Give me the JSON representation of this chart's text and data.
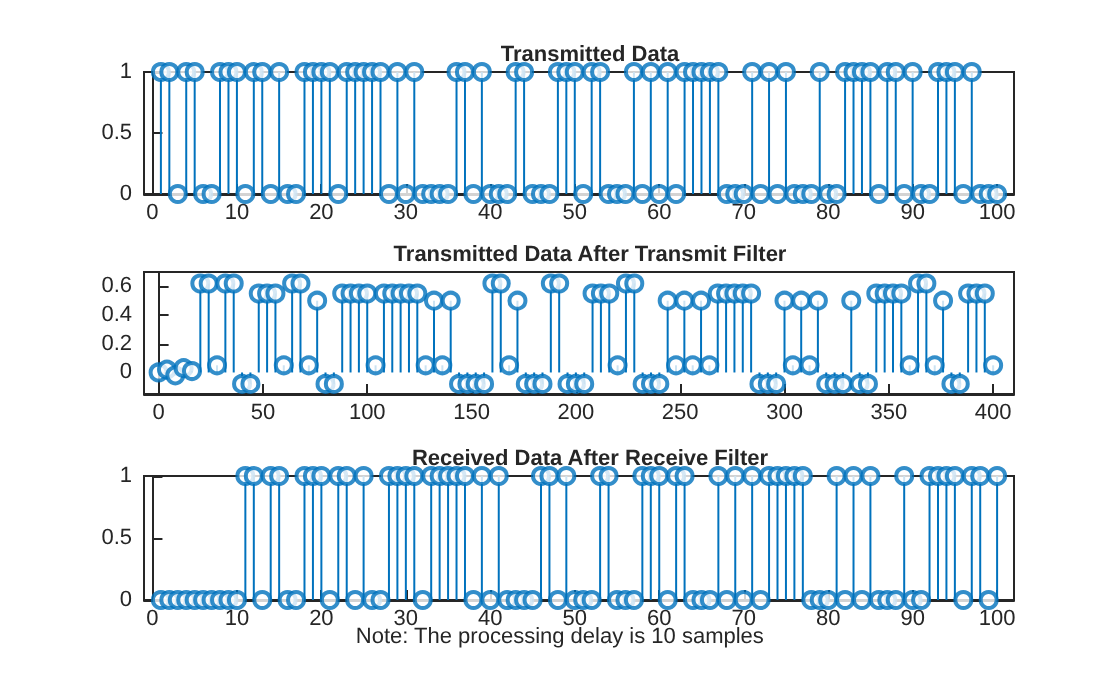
{
  "chart_data": [
    {
      "type": "lollipop",
      "title": "Transmitted Data",
      "color": "#0072bd",
      "marker": "circle",
      "x": [
        1,
        2,
        3,
        4,
        5,
        6,
        7,
        8,
        9,
        10,
        11,
        12,
        13,
        14,
        15,
        16,
        17,
        18,
        19,
        20,
        21,
        22,
        23,
        24,
        25,
        26,
        27,
        28,
        29,
        30,
        31,
        32,
        33,
        34,
        35,
        36,
        37,
        38,
        39,
        40,
        41,
        42,
        43,
        44,
        45,
        46,
        47,
        48,
        49,
        50,
        51,
        52,
        53,
        54,
        55,
        56,
        57,
        58,
        59,
        60,
        61,
        62,
        63,
        64,
        65,
        66,
        67,
        68,
        69,
        70,
        71,
        72,
        73,
        74,
        75,
        76,
        77,
        78,
        79,
        80,
        81,
        82,
        83,
        84,
        85,
        86,
        87,
        88,
        89,
        90,
        91,
        92,
        93,
        94,
        95,
        96,
        97,
        98,
        99,
        100
      ],
      "values": [
        1,
        1,
        0,
        1,
        1,
        0,
        0,
        1,
        1,
        1,
        0,
        1,
        1,
        0,
        1,
        0,
        0,
        1,
        1,
        1,
        1,
        0,
        1,
        1,
        1,
        1,
        1,
        0,
        1,
        0,
        1,
        0,
        0,
        0,
        0,
        1,
        1,
        0,
        1,
        0,
        0,
        0,
        1,
        1,
        0,
        0,
        0,
        1,
        1,
        1,
        0,
        1,
        1,
        0,
        0,
        0,
        1,
        0,
        1,
        0,
        1,
        0,
        1,
        1,
        1,
        1,
        1,
        0,
        0,
        0,
        1,
        0,
        1,
        0,
        1,
        0,
        0,
        0,
        1,
        0,
        0,
        1,
        1,
        1,
        1,
        0,
        1,
        1,
        0,
        1,
        0,
        0,
        1,
        1,
        1,
        0,
        1,
        0,
        0,
        0
      ],
      "xlim": [
        -1,
        102
      ],
      "xticks": [
        0,
        10,
        20,
        30,
        40,
        50,
        60,
        70,
        80,
        90,
        100
      ],
      "ylim": [
        0,
        1
      ],
      "yticks": [
        0,
        0.5,
        1
      ]
    },
    {
      "type": "lollipop",
      "title": "Transmitted Data After Transmit Filter",
      "color": "#0072bd",
      "marker": "circle",
      "x": [
        0,
        4,
        8,
        12,
        16,
        20,
        24,
        28,
        32,
        36,
        40,
        44,
        48,
        52,
        56,
        60,
        64,
        68,
        72,
        76,
        80,
        84,
        88,
        92,
        96,
        100,
        104,
        108,
        112,
        116,
        120,
        124,
        128,
        132,
        136,
        140,
        144,
        148,
        152,
        156,
        160,
        164,
        168,
        172,
        176,
        180,
        184,
        188,
        192,
        196,
        200,
        204,
        208,
        212,
        216,
        220,
        224,
        228,
        232,
        236,
        240,
        244,
        248,
        252,
        256,
        260,
        264,
        268,
        272,
        276,
        280,
        284,
        288,
        292,
        296,
        300,
        304,
        308,
        312,
        316,
        320,
        324,
        328,
        332,
        336,
        340,
        344,
        348,
        352,
        356,
        360,
        364,
        368,
        372,
        376,
        380,
        384,
        388,
        392,
        396,
        400
      ],
      "values": [
        0,
        0.02,
        -0.02,
        0.03,
        0.01,
        0.62,
        0.62,
        0.05,
        0.62,
        0.62,
        -0.08,
        -0.08,
        0.55,
        0.55,
        0.55,
        0.05,
        0.62,
        0.62,
        0.05,
        0.5,
        -0.08,
        -0.08,
        0.55,
        0.55,
        0.55,
        0.55,
        0.05,
        0.55,
        0.55,
        0.55,
        0.55,
        0.55,
        0.05,
        0.5,
        0.05,
        0.5,
        -0.08,
        -0.08,
        -0.08,
        -0.08,
        0.62,
        0.62,
        0.05,
        0.5,
        -0.08,
        -0.08,
        -0.08,
        0.62,
        0.62,
        -0.08,
        -0.08,
        -0.08,
        0.55,
        0.55,
        0.55,
        0.05,
        0.62,
        0.62,
        -0.08,
        -0.08,
        -0.08,
        0.5,
        0.05,
        0.5,
        0.05,
        0.5,
        0.05,
        0.55,
        0.55,
        0.55,
        0.55,
        0.55,
        -0.08,
        -0.08,
        -0.08,
        0.5,
        0.05,
        0.5,
        0.05,
        0.5,
        -0.08,
        -0.08,
        -0.08,
        0.5,
        -0.08,
        -0.08,
        0.55,
        0.55,
        0.55,
        0.55,
        0.05,
        0.62,
        0.62,
        0.05,
        0.5,
        -0.08,
        -0.08,
        0.55,
        0.55,
        0.55,
        0.05
      ],
      "xlim": [
        -7,
        410
      ],
      "xticks": [
        0,
        50,
        100,
        150,
        200,
        250,
        300,
        350,
        400
      ],
      "ylim": [
        -0.15,
        0.7
      ],
      "yticks": [
        0,
        0.2,
        0.4,
        0.6
      ]
    },
    {
      "type": "lollipop",
      "title": "Received Data After Receive Filter",
      "color": "#0072bd",
      "marker": "circle",
      "x": [
        1,
        2,
        3,
        4,
        5,
        6,
        7,
        8,
        9,
        10,
        11,
        12,
        13,
        14,
        15,
        16,
        17,
        18,
        19,
        20,
        21,
        22,
        23,
        24,
        25,
        26,
        27,
        28,
        29,
        30,
        31,
        32,
        33,
        34,
        35,
        36,
        37,
        38,
        39,
        40,
        41,
        42,
        43,
        44,
        45,
        46,
        47,
        48,
        49,
        50,
        51,
        52,
        53,
        54,
        55,
        56,
        57,
        58,
        59,
        60,
        61,
        62,
        63,
        64,
        65,
        66,
        67,
        68,
        69,
        70,
        71,
        72,
        73,
        74,
        75,
        76,
        77,
        78,
        79,
        80,
        81,
        82,
        83,
        84,
        85,
        86,
        87,
        88,
        89,
        90,
        91,
        92,
        93,
        94,
        95,
        96,
        97,
        98,
        99,
        100
      ],
      "values": [
        0,
        0,
        0,
        0,
        0,
        0,
        0,
        0,
        0,
        0,
        1,
        1,
        0,
        1,
        1,
        0,
        0,
        1,
        1,
        1,
        0,
        1,
        1,
        0,
        1,
        0,
        0,
        1,
        1,
        1,
        1,
        0,
        1,
        1,
        1,
        1,
        1,
        0,
        1,
        0,
        1,
        0,
        0,
        0,
        0,
        1,
        1,
        0,
        1,
        0,
        0,
        0,
        1,
        1,
        0,
        0,
        0,
        1,
        1,
        1,
        0,
        1,
        1,
        0,
        0,
        0,
        1,
        0,
        1,
        0,
        1,
        0,
        1,
        1,
        1,
        1,
        1,
        0,
        0,
        0,
        1,
        0,
        1,
        0,
        1,
        0,
        0,
        0,
        1,
        0,
        0,
        1,
        1,
        1,
        1,
        0,
        1,
        1,
        0,
        1
      ],
      "xlim": [
        -1,
        102
      ],
      "xticks": [
        0,
        10,
        20,
        30,
        40,
        50,
        60,
        70,
        80,
        90,
        100
      ],
      "ylim": [
        0,
        1
      ],
      "yticks": [
        0,
        0.5,
        1
      ],
      "annotations": [
        "Note: The processing delay is 10 samples"
      ]
    }
  ]
}
